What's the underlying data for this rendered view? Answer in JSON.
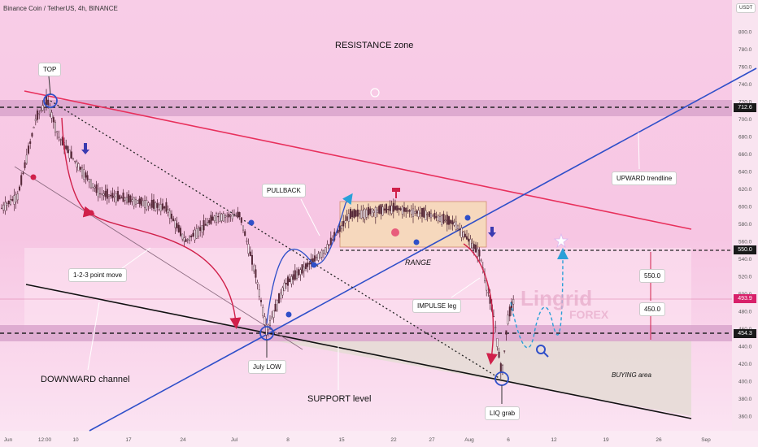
{
  "header": {
    "symbol": "Binance Coin / TetherUS, 4h, BINANCE",
    "currency": "USDT"
  },
  "colors": {
    "background_top": "#f7cbe6",
    "background_bottom": "#fbe3f2",
    "candle": "#5a2a3a",
    "resistance_line": "#e8305c",
    "trendline": "#2f4fc9",
    "support_line": "#111111",
    "arrow": "#d0204a",
    "range_box": "#f8d9b8",
    "buying_area": "#e8dfd9",
    "price_badge": "#d8206a",
    "level_badge": "#1a1a1a",
    "projection": "#2aa0d8",
    "watermark": "#e7a9c9"
  },
  "watermark": {
    "line1": "Lingrid",
    "line2": "FOREX"
  },
  "price_labels": {
    "current": "493.9",
    "resistance": "712.6",
    "target": "550.0",
    "support": "454.3"
  },
  "annotations": {
    "top": "TOP",
    "resistance_zone": "RESISTANCE zone",
    "pullback": "PULLBACK",
    "upward_trendline": "UPWARD trendline",
    "range": "RANGE",
    "one_two_three": "1-2-3 point move",
    "impulse_leg": "IMPULSE leg",
    "box_550": "550.0",
    "box_450": "450.0",
    "july_low": "July LOW",
    "downward_channel": "DOWNWARD channel",
    "support_level": "SUPPORT level",
    "buying_area": "BUYING area",
    "liq_grab": "LIQ grab"
  },
  "chart_data": {
    "type": "candlestick",
    "title": "Binance Coin / TetherUS, 4h, BINANCE",
    "y_axis": {
      "range": [
        345,
        830
      ],
      "ticks": [
        "800.0",
        "780.0",
        "760.0",
        "740.0",
        "720.0",
        "700.0",
        "680.0",
        "660.0",
        "640.0",
        "620.0",
        "600.0",
        "580.0",
        "560.0",
        "540.0",
        "520.0",
        "500.0",
        "480.0",
        "460.0",
        "440.0",
        "420.0",
        "400.0",
        "380.0",
        "360.0"
      ]
    },
    "x_axis": {
      "ticks": [
        "Jun",
        "12:00",
        "10",
        "17",
        "24",
        "Jul",
        "8",
        "15",
        "22",
        "27",
        "Aug",
        "6",
        "12",
        "19",
        "26",
        "Sep"
      ]
    },
    "price_path": [
      {
        "t": "Jun",
        "close": 598
      },
      {
        "t": "Jun 3",
        "close": 612
      },
      {
        "t": "Jun 5",
        "close": 700
      },
      {
        "t": "Jun 6",
        "close": 722
      },
      {
        "t": "Jun 8",
        "close": 680
      },
      {
        "t": "Jun 10",
        "close": 648
      },
      {
        "t": "Jun 12",
        "close": 615
      },
      {
        "t": "Jun 17",
        "close": 608
      },
      {
        "t": "Jun 21",
        "close": 598
      },
      {
        "t": "Jun 24",
        "close": 560
      },
      {
        "t": "Jun 28",
        "close": 588
      },
      {
        "t": "Jul 1",
        "close": 590
      },
      {
        "t": "Jul 3",
        "close": 520
      },
      {
        "t": "Jul 5",
        "close": 458
      },
      {
        "t": "Jul 8",
        "close": 510
      },
      {
        "t": "Jul 11",
        "close": 530
      },
      {
        "t": "Jul 14",
        "close": 550
      },
      {
        "t": "Jul 17",
        "close": 590
      },
      {
        "t": "Jul 22",
        "close": 598
      },
      {
        "t": "Jul 27",
        "close": 590
      },
      {
        "t": "Jul 30",
        "close": 580
      },
      {
        "t": "Aug 2",
        "close": 545
      },
      {
        "t": "Aug 4",
        "close": 470
      },
      {
        "t": "Aug 5",
        "close": 405
      },
      {
        "t": "Aug 6",
        "close": 470
      },
      {
        "t": "Aug 7",
        "close": 494
      }
    ],
    "levels": {
      "resistance": 712.6,
      "support": 454.3,
      "target": 550.0,
      "current": 493.9
    }
  }
}
